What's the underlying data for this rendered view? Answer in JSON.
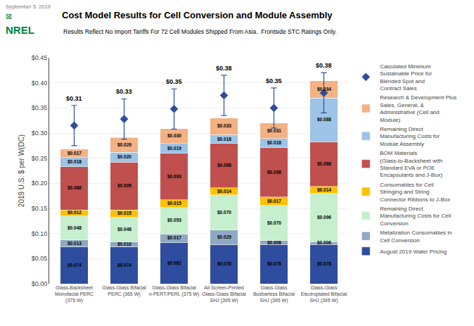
{
  "chart_data": {
    "type": "bar",
    "stacked": true,
    "title": "Cost Model Results for Cell Conversion and Module Assembly",
    "subtitle": "Results Reflect No Import Tariffs For 72 Cell Modules Shipped From Asia.  Frontside STC Ratings Only.",
    "ylabel": "2019 U.S. $ per W(DC)",
    "categories": [
      "Glass-Backsheet\nMonofacial PERC\n(375 W)",
      "Glass-Glass Bifacial\nPERC (365 W)",
      "Glass-Glass Bifacial\nn-PERT/PERL (375 W)",
      "All Screen-Printed\nGlass-Glass Bifacial\nSHJ (395 W)",
      "Glass-Glass\nBusbarless Bifacial\nSHJ (395 W)",
      "Glass-Glass\nElectroplated Bifacial\nSHJ (395 W)"
    ],
    "ylim": [
      0,
      0.45
    ],
    "yticks": [
      {
        "value": 0.0,
        "label": "$0.00"
      },
      {
        "value": 0.05,
        "label": "$0.05"
      },
      {
        "value": 0.1,
        "label": "$0.10"
      },
      {
        "value": 0.15,
        "label": "$0.15"
      },
      {
        "value": 0.2,
        "label": "$0.20"
      },
      {
        "value": 0.25,
        "label": "$0.25"
      },
      {
        "value": 0.3,
        "label": "$0.30"
      },
      {
        "value": 0.35,
        "label": "$0.35"
      },
      {
        "value": 0.4,
        "label": "$0.40"
      },
      {
        "value": 0.45,
        "label": "$0.45"
      }
    ],
    "grid": true,
    "legend": "right",
    "data_labels": true,
    "annotations": [
      {
        "text": "September 5, 2019",
        "color": "#808080"
      },
      {
        "text": "⊠",
        "color": "#00843D"
      },
      {
        "text": "NREL",
        "color": "#00843D"
      }
    ],
    "series": [
      {
        "name": "August 2019 Wafer Pricing",
        "color": "#2E4D9E",
        "values": [
          0.074,
          0.074,
          0.082,
          0.078,
          0.078,
          0.078
        ],
        "value_labels": [
          "$0.074",
          "$0.074",
          "$0.082",
          "$0.078",
          "$0.078",
          "$0.078"
        ]
      },
      {
        "name": "Metalization Consumables in Cell Conversion",
        "color": "#8EA9C1",
        "values": [
          0.013,
          0.01,
          0.017,
          0.029,
          0.008,
          0.006
        ],
        "value_labels": [
          "$0.013",
          "$0.010",
          "$0.017",
          "$0.029",
          "$0.008",
          "$0.006"
        ]
      },
      {
        "name": "Remaining Direct Manufacturing Costs for Cell Conversion",
        "color": "#C6EFCE",
        "values": [
          0.048,
          0.048,
          0.053,
          0.07,
          0.07,
          0.096
        ],
        "value_labels": [
          "$0.048",
          "$0.048",
          "$0.053",
          "$0.070",
          "$0.070",
          "$0.096"
        ]
      },
      {
        "name": "Consumables for Cell Stringing and String Connector Ribbons to J-Box",
        "color": "#FFC000",
        "values": [
          0.012,
          0.015,
          0.015,
          0.014,
          0.017,
          0.014
        ],
        "value_labels": [
          "$0.012",
          "$0.015",
          "$0.015",
          "$0.014",
          "$0.017",
          "$0.014"
        ]
      },
      {
        "name": "BOM Materials (Glass-to-Backsheet with Standard EVA or POE Encapsulants and J-Box)",
        "color": "#C0504D",
        "values": [
          0.086,
          0.095,
          0.093,
          0.088,
          0.098,
          0.088
        ],
        "value_labels": [
          "$0.086",
          "$0.095",
          "$0.093",
          "$0.088",
          "$0.098",
          "$0.088"
        ]
      },
      {
        "name": "Remaining Direct Manufacturing Costs for Module Assembly",
        "color": "#9DC3E6",
        "values": [
          0.018,
          0.02,
          0.019,
          0.018,
          0.018,
          0.088
        ],
        "value_labels": [
          "$0.018",
          "$0.020",
          "$0.019",
          "$0.018",
          "$0.018",
          "$0.088"
        ]
      },
      {
        "name": "Research & Development Plus Sales, General, & Administrative (Cell and Module)",
        "color": "#F4B183",
        "values": [
          0.017,
          0.029,
          0.03,
          0.033,
          0.031,
          0.034
        ],
        "value_labels": [
          "$0.017",
          "$0.029",
          "$0.030",
          "$0.033",
          "$0.031",
          "$0.034"
        ]
      },
      {
        "name": "Calculated Minimum\nSustainable Price for\nBlended Spot and\nContract Sales",
        "type": "scatter",
        "marker": "diamond",
        "color": "#2E4D9E",
        "values": [
          0.315,
          0.328,
          0.348,
          0.375,
          0.35,
          0.38
        ],
        "error_low": [
          0.04,
          0.04,
          0.04,
          0.04,
          0.04,
          0.04
        ],
        "error_high": [
          0.04,
          0.04,
          0.04,
          0.04,
          0.04,
          0.04
        ],
        "value_labels": [
          "$0.31",
          "$0.33",
          "$0.35",
          "$0.38",
          "$0.35",
          "$0.38"
        ]
      }
    ]
  }
}
